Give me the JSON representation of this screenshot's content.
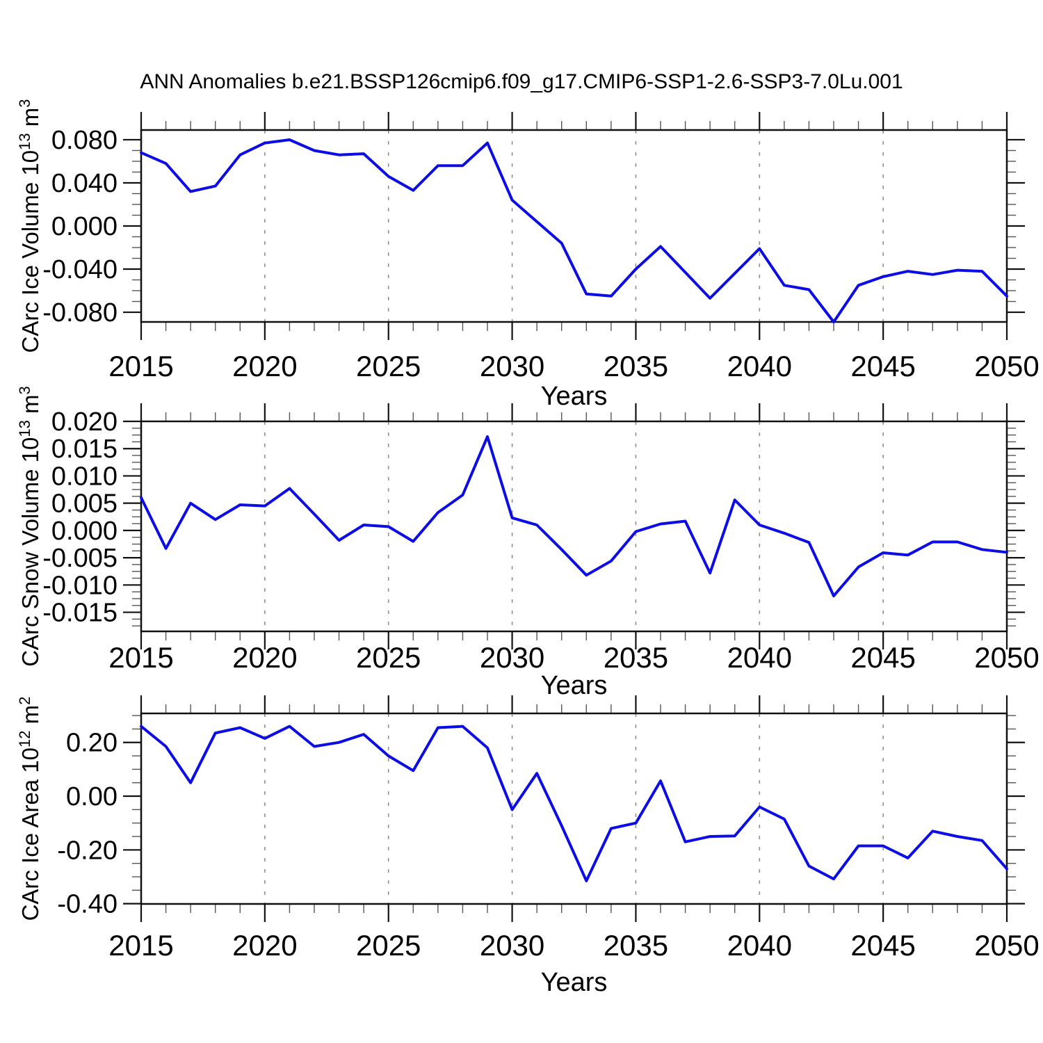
{
  "title": "ANN Anomalies b.e21.BSSP126cmip6.f09_g17.CMIP6-SSP1-2.6-SSP3-7.0Lu.001",
  "colors": {
    "line": "#0c0ce6",
    "axis": "#111111",
    "minor_tick": "#555555",
    "grid": "#909090",
    "text": "#000000"
  },
  "chart_data": {
    "type": "line",
    "x": {
      "label": "Years",
      "min": 2015,
      "max": 2050,
      "tick_years": [
        2015,
        2020,
        2025,
        2030,
        2035,
        2040,
        2045,
        2050
      ],
      "tick_labels": [
        "2015",
        "2020",
        "2025",
        "2030",
        "2035",
        "2040",
        "2045",
        "2050"
      ],
      "grid_years": [
        2020,
        2025,
        2030,
        2035,
        2040,
        2045
      ],
      "minor_step": 1
    },
    "years": [
      2015,
      2016,
      2017,
      2018,
      2019,
      2020,
      2021,
      2022,
      2023,
      2024,
      2025,
      2026,
      2027,
      2028,
      2029,
      2030,
      2031,
      2032,
      2033,
      2034,
      2035,
      2036,
      2037,
      2038,
      2039,
      2040,
      2041,
      2042,
      2043,
      2044,
      2045,
      2046,
      2047,
      2048,
      2049,
      2050
    ],
    "panels": [
      {
        "name": "carc-ice-volume",
        "ylabel_text": "CArc Ice Volume 10^13 m^3",
        "ylabel_parts": [
          [
            "t",
            "CArc Ice Volume 10"
          ],
          [
            "s",
            "13"
          ],
          [
            "t",
            " m"
          ],
          [
            "s",
            "3"
          ]
        ],
        "ylim": [
          -0.089,
          0.089
        ],
        "ytick_values": [
          0.08,
          0.04,
          0.0,
          -0.04,
          -0.08
        ],
        "ytick_labels": [
          "0.080",
          "0.040",
          "0.000",
          "-0.040",
          "-0.080"
        ],
        "y_minor_step": 0.01,
        "values": [
          0.068,
          0.058,
          0.032,
          0.037,
          0.066,
          0.077,
          0.08,
          0.07,
          0.066,
          0.067,
          0.046,
          0.033,
          0.056,
          0.056,
          0.077,
          0.024,
          0.004,
          -0.016,
          -0.063,
          -0.065,
          -0.04,
          -0.019,
          -0.043,
          -0.067,
          -0.044,
          -0.021,
          -0.055,
          -0.059,
          -0.089,
          -0.055,
          -0.047,
          -0.042,
          -0.045,
          -0.041,
          -0.042,
          -0.065
        ]
      },
      {
        "name": "carc-snow-volume",
        "ylabel_text": "CArc Snow Volume 10^13 m^3",
        "ylabel_parts": [
          [
            "t",
            "CArc Snow Volume 10"
          ],
          [
            "s",
            "13"
          ],
          [
            "t",
            " m"
          ],
          [
            "s",
            "3"
          ]
        ],
        "ylim": [
          -0.0185,
          0.02
        ],
        "ytick_values": [
          0.02,
          0.015,
          0.01,
          0.005,
          0.0,
          -0.005,
          -0.01,
          -0.015
        ],
        "ytick_labels": [
          "0.020",
          "0.015",
          "0.010",
          "0.005",
          "0.000",
          "-0.005",
          "-0.010",
          "-0.015"
        ],
        "y_minor_step": 0.00125,
        "values": [
          0.006,
          -0.0033,
          0.005,
          0.002,
          0.0047,
          0.0045,
          0.0077,
          0.003,
          -0.0018,
          0.001,
          0.0007,
          -0.002,
          0.0033,
          0.0065,
          0.0172,
          0.0023,
          0.001,
          -0.0035,
          -0.0082,
          -0.0056,
          -0.0002,
          0.0012,
          0.0017,
          -0.0078,
          0.0056,
          0.001,
          -0.0005,
          -0.0022,
          -0.012,
          -0.0067,
          -0.0041,
          -0.0045,
          -0.0021,
          -0.0021,
          -0.0035,
          -0.004
        ]
      },
      {
        "name": "carc-ice-area",
        "ylabel_text": "CArc Ice Area 10^12 m^2",
        "ylabel_parts": [
          [
            "t",
            "CArc Ice Area 10"
          ],
          [
            "s",
            "12"
          ],
          [
            "t",
            " m"
          ],
          [
            "s",
            "2"
          ]
        ],
        "ylim": [
          -0.401,
          0.308
        ],
        "ytick_values": [
          0.2,
          0.0,
          -0.2,
          -0.4
        ],
        "ytick_labels": [
          "0.20",
          "0.00",
          "-0.20",
          "-0.40"
        ],
        "y_minor_step": 0.05,
        "values": [
          0.26,
          0.185,
          0.05,
          0.235,
          0.255,
          0.215,
          0.26,
          0.185,
          0.2,
          0.23,
          0.15,
          0.095,
          0.255,
          0.26,
          0.18,
          -0.05,
          0.085,
          -0.11,
          -0.315,
          -0.12,
          -0.1,
          0.057,
          -0.17,
          -0.15,
          -0.148,
          -0.04,
          -0.085,
          -0.26,
          -0.308,
          -0.185,
          -0.185,
          -0.23,
          -0.13,
          -0.15,
          -0.165,
          -0.27
        ]
      }
    ]
  }
}
